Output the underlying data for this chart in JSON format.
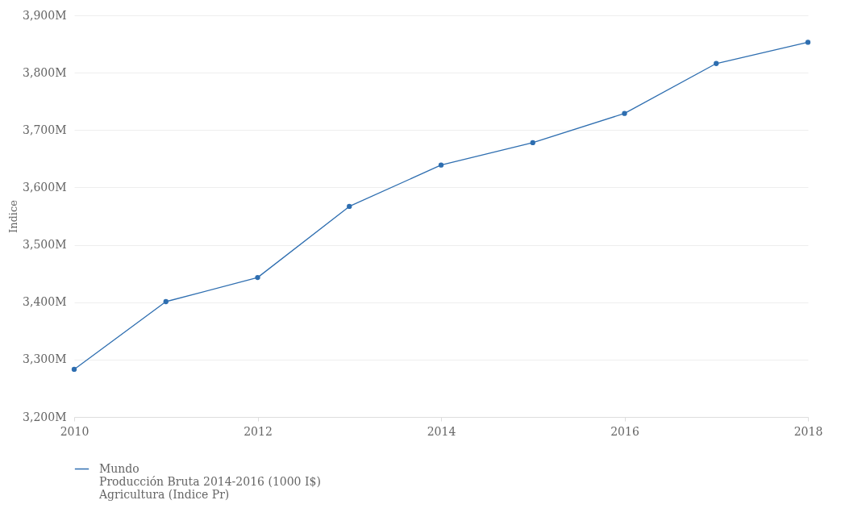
{
  "chart_data": {
    "type": "line",
    "ylabel": "Indice",
    "x": [
      2010,
      2011,
      2012,
      2013,
      2014,
      2015,
      2016,
      2017,
      2018
    ],
    "series": [
      {
        "name": "Mundo\nProducción Bruta 2014-2016 (1000 I$)\nAgricultura (Indice Pr)",
        "color": "#2e6eb0",
        "values": [
          3283,
          3401,
          3443,
          3567,
          3639,
          3678,
          3729,
          3816,
          3853
        ]
      }
    ],
    "xlim": [
      2010,
      2018
    ],
    "xticks": [
      2010,
      2012,
      2014,
      2016,
      2018
    ],
    "ylim": [
      3200,
      3900
    ],
    "yticks": [
      {
        "value": 3200,
        "label": "3,200M"
      },
      {
        "value": 3300,
        "label": "3,300M"
      },
      {
        "value": 3400,
        "label": "3,400M"
      },
      {
        "value": 3500,
        "label": "3,500M"
      },
      {
        "value": 3600,
        "label": "3,600M"
      },
      {
        "value": 3700,
        "label": "3,700M"
      },
      {
        "value": 3800,
        "label": "3,800M"
      },
      {
        "value": 3900,
        "label": "3,900M"
      }
    ],
    "grid": "y",
    "legend": "bottom",
    "marker": "circle",
    "line_style": "solid"
  }
}
